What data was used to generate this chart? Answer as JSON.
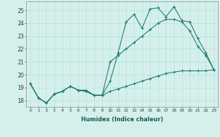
{
  "xlabel": "Humidex (Indice chaleur)",
  "bg_color": "#d5f0ec",
  "grid_color": "#b8ddd8",
  "line_color": "#1e7a6e",
  "xlim": [
    -0.5,
    23.5
  ],
  "ylim": [
    17.5,
    25.7
  ],
  "xticks": [
    0,
    1,
    2,
    3,
    4,
    5,
    6,
    7,
    8,
    9,
    10,
    11,
    12,
    13,
    14,
    15,
    16,
    17,
    18,
    19,
    20,
    21,
    22,
    23
  ],
  "yticks": [
    18,
    19,
    20,
    21,
    22,
    23,
    24,
    25
  ],
  "series1_x": [
    0,
    1,
    2,
    3,
    4,
    5,
    6,
    7,
    8,
    9,
    10,
    11,
    12,
    13,
    14,
    15,
    16,
    17,
    18,
    19,
    20,
    21,
    22,
    23
  ],
  "series1_y": [
    19.3,
    18.2,
    17.8,
    18.5,
    18.7,
    19.1,
    18.8,
    18.7,
    18.4,
    18.4,
    19.5,
    21.7,
    24.1,
    24.7,
    23.6,
    25.1,
    25.2,
    24.5,
    25.3,
    24.2,
    24.1,
    22.8,
    21.7,
    20.4
  ],
  "series2_x": [
    0,
    1,
    2,
    3,
    4,
    5,
    6,
    7,
    8,
    9,
    10,
    11,
    12,
    13,
    14,
    15,
    16,
    17,
    18,
    19,
    20,
    21,
    22,
    23
  ],
  "series2_y": [
    19.3,
    18.2,
    17.8,
    18.5,
    18.7,
    19.1,
    18.8,
    18.7,
    18.4,
    18.4,
    21.0,
    21.5,
    22.0,
    22.5,
    23.0,
    23.5,
    24.0,
    24.3,
    24.3,
    24.1,
    23.4,
    22.2,
    21.5,
    20.4
  ],
  "series3_x": [
    0,
    1,
    2,
    3,
    4,
    5,
    6,
    7,
    8,
    9,
    10,
    11,
    12,
    13,
    14,
    15,
    16,
    17,
    18,
    19,
    20,
    21,
    22,
    23
  ],
  "series3_y": [
    19.3,
    18.2,
    17.8,
    18.5,
    18.7,
    19.1,
    18.8,
    18.8,
    18.4,
    18.4,
    18.7,
    18.9,
    19.1,
    19.3,
    19.5,
    19.7,
    19.9,
    20.1,
    20.2,
    20.3,
    20.3,
    20.3,
    20.3,
    20.4
  ]
}
